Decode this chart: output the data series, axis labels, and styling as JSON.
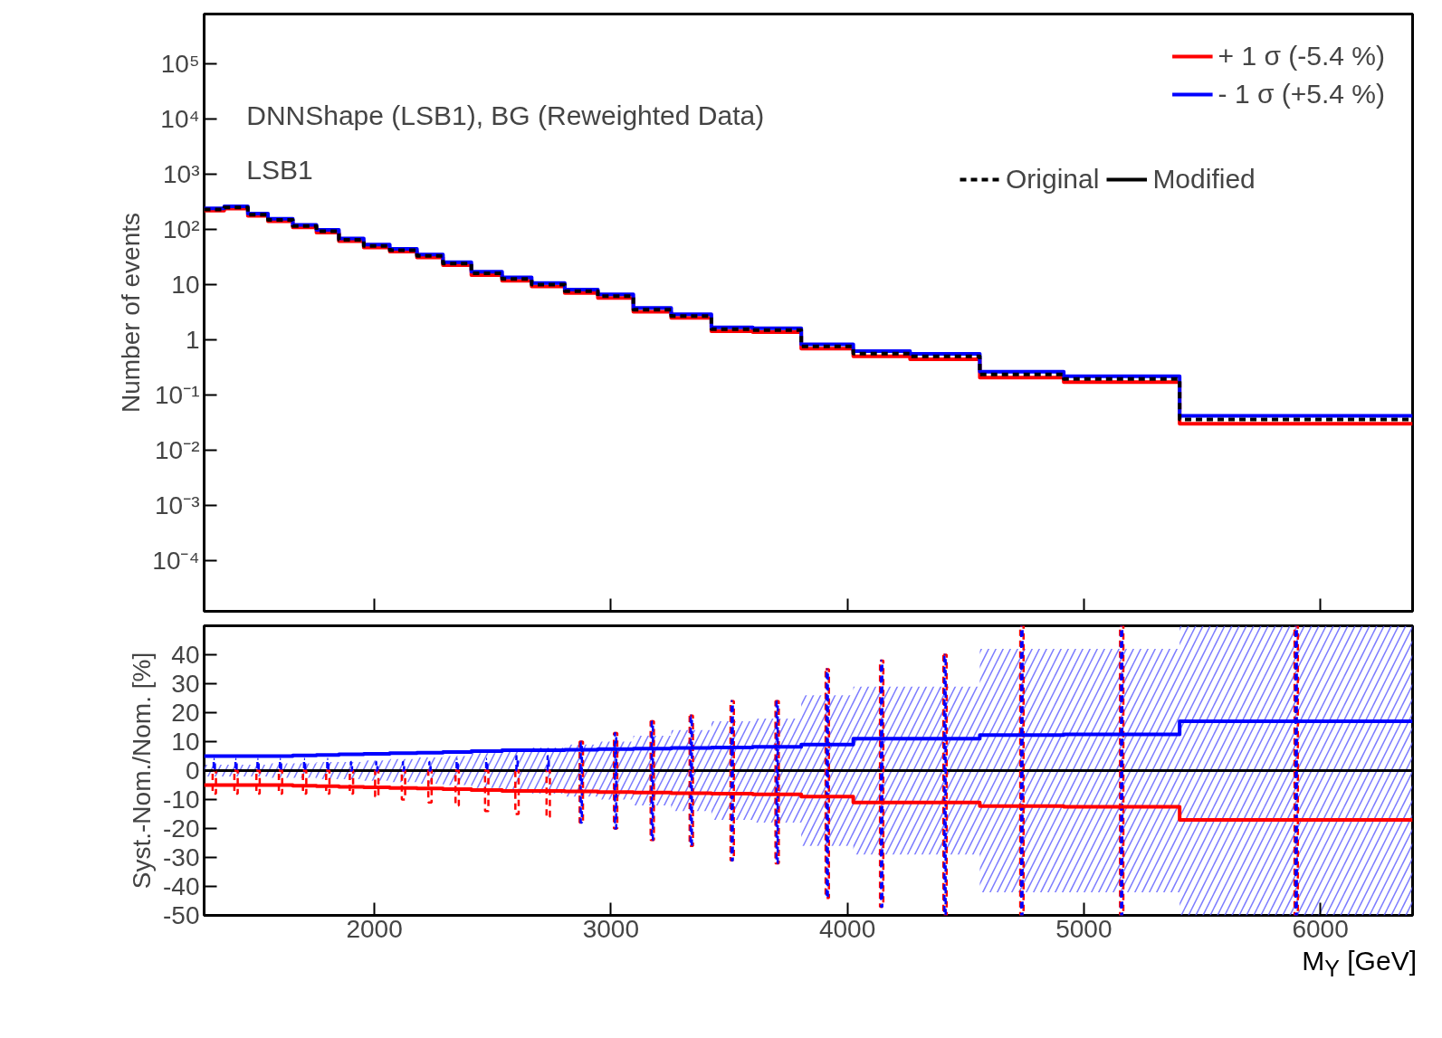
{
  "chart_data": [
    {
      "type": "histogram",
      "bins": [
        1280,
        1365,
        1465,
        1550,
        1655,
        1755,
        1850,
        1955,
        2065,
        2180,
        2290,
        2410,
        2540,
        2665,
        2805,
        2945,
        3095,
        3255,
        3425,
        3600,
        3805,
        4025,
        4265,
        4560,
        4915,
        5405,
        6390
      ],
      "xlim": [
        1280,
        6390
      ],
      "xticks": [
        2000,
        3000,
        4000,
        5000,
        6000
      ],
      "tick_labels": "y",
      "log": "y",
      "ylim": [
        1.2e-05,
        800000.0
      ],
      "yticks": [
        {
          "value": 0.0001,
          "label": "10⁻⁴"
        },
        {
          "value": 0.001,
          "label": "10⁻³"
        },
        {
          "value": 0.01,
          "label": "10⁻²"
        },
        {
          "value": 0.1,
          "label": "10⁻¹"
        },
        1,
        10,
        {
          "value": 100,
          "label": "10²"
        },
        {
          "value": 1000,
          "label": "10³"
        },
        {
          "value": 10000,
          "label": "10⁴"
        },
        {
          "value": 100000,
          "label": "10⁵"
        }
      ],
      "ylabel": "Number of events",
      "grid": false,
      "legend": "top right",
      "annotations": [
        "DNNShape (LSB1), BG (Reweighted Data)",
        "LSB1",
        "Modified"
      ],
      "series": [
        {
          "name": "+ 1 σ (-5.4 %)",
          "color": "#ff0000",
          "line_style": "solid",
          "values": [
            218.5,
            237.5,
            175.8,
            140.6,
            109.0,
            88.0,
            61.4,
            47.1,
            39.5,
            31.0,
            22.5,
            14.9,
            11.7,
            9.3,
            7.05,
            5.74,
            3.23,
            2.49,
            1.43,
            1.38,
            0.69,
            0.5,
            0.445,
            0.206,
            0.171,
            0.03
          ]
        },
        {
          "name": "- 1 σ (+5.4 %)",
          "color": "#0000ff",
          "line_style": "solid",
          "values": [
            241.5,
            262.5,
            194.3,
            155.4,
            121.0,
            98.0,
            68.6,
            52.9,
            44.5,
            35.0,
            25.5,
            17.1,
            13.5,
            10.7,
            8.15,
            6.66,
            3.77,
            2.91,
            1.67,
            1.62,
            0.83,
            0.62,
            0.555,
            0.264,
            0.219,
            0.042
          ]
        },
        {
          "name": "Original",
          "color": "#000000",
          "line_style": "dashed",
          "values": [
            230,
            250,
            185,
            148,
            115,
            93,
            65,
            50,
            42,
            33,
            24,
            16,
            12.6,
            10,
            7.6,
            6.2,
            3.5,
            2.7,
            1.55,
            1.5,
            0.76,
            0.56,
            0.5,
            0.235,
            0.195,
            0.036
          ]
        }
      ]
    },
    {
      "type": "histogram",
      "bins": [
        1280,
        1365,
        1465,
        1550,
        1655,
        1755,
        1850,
        1955,
        2065,
        2180,
        2290,
        2410,
        2540,
        2665,
        2805,
        2945,
        3095,
        3255,
        3425,
        3600,
        3805,
        4025,
        4265,
        4560,
        4915,
        5405,
        6390
      ],
      "xlim": [
        1280,
        6390
      ],
      "xticks": [
        2000,
        3000,
        4000,
        5000,
        6000
      ],
      "ylim": [
        -50,
        50
      ],
      "yticks": [
        -50,
        -40,
        -30,
        -20,
        -10,
        0,
        10,
        20,
        30,
        40
      ],
      "xlabel": "M$_{Y}$ [GeV]",
      "ylabel": "Syst.-Nom./Nom. [%]",
      "grid": false,
      "series": [
        {
          "type": "line",
          "color": "#000000",
          "line_style": "solid",
          "x": [
            1280,
            1365,
            1365,
            1465,
            1465,
            1550,
            1550,
            1655,
            1655,
            1755,
            1755,
            1850,
            1850,
            1955,
            1955,
            2065,
            2065,
            2180,
            2180,
            2290,
            2290,
            2410,
            2410,
            2540,
            2540,
            2665,
            2665,
            2805,
            2805,
            2945,
            2945,
            3095,
            3095,
            3255,
            3255,
            3425,
            3425,
            3600,
            3600,
            3805,
            3805,
            4025,
            4025,
            4265,
            4265,
            4560,
            4560,
            4915,
            4915,
            5405,
            5405,
            6390
          ],
          "values": [
            0,
            0,
            0,
            0,
            0,
            0,
            0,
            0,
            0,
            0,
            0,
            0,
            0,
            0,
            0,
            0,
            0,
            0,
            0,
            0,
            0,
            0,
            0,
            0,
            0,
            0,
            0,
            0,
            0,
            0,
            0,
            0,
            0,
            0,
            0,
            0,
            0,
            0,
            0,
            0,
            0,
            0,
            0,
            0,
            0,
            0,
            0,
            0,
            0,
            0,
            0,
            0
          ],
          "lower": [
            -2,
            -2,
            -2,
            -2,
            -2,
            -2,
            -2.5,
            -2.5,
            -2.5,
            -2.5,
            -3,
            -3,
            -3,
            -3,
            -3.5,
            -3.5,
            -4,
            -4,
            -4.5,
            -4.5,
            -5,
            -5,
            -6,
            -6,
            -7,
            -7,
            -8,
            -8,
            -9,
            -9,
            -10,
            -10,
            -12,
            -12,
            -14,
            -14,
            -17,
            -17,
            -18,
            -18,
            -26,
            -26,
            -29,
            -29,
            -29,
            -29,
            -42,
            -42,
            -42,
            -42,
            -50,
            -50
          ],
          "upper": [
            2,
            2,
            2,
            2,
            2,
            2,
            2.5,
            2.5,
            2.5,
            2.5,
            3,
            3,
            3,
            3,
            3.5,
            3.5,
            4,
            4,
            4.5,
            4.5,
            5,
            5,
            6,
            6,
            7,
            7,
            8,
            8,
            9,
            9,
            10,
            10,
            12,
            12,
            14,
            14,
            17,
            17,
            18,
            18,
            26,
            26,
            29,
            29,
            29,
            29,
            42,
            42,
            42,
            42,
            50,
            50
          ]
        },
        {
          "type": "bar",
          "line_style": "dashed",
          "color": "#ff0000",
          "x": [
            1323,
            1415,
            1508,
            1603,
            1705,
            1803,
            1903,
            2010,
            2123,
            2235,
            2350,
            2475,
            2603,
            2735,
            2875,
            3020,
            3175,
            3340,
            3513,
            3703,
            3915,
            4145,
            4413,
            4738,
            5160,
            5898
          ],
          "base": [
            -8,
            -8,
            -8,
            -8,
            -8,
            -8,
            -8,
            -9,
            -10,
            -11,
            -12,
            -14,
            -15,
            -16,
            -18,
            -20,
            -24,
            -26,
            -31,
            -32,
            -44,
            -47,
            -50,
            -50,
            -50,
            -50
          ],
          "values": [
            8,
            8,
            8,
            8,
            8,
            8,
            8,
            9,
            10,
            11,
            12,
            14,
            15,
            16,
            28,
            33,
            41,
            45,
            55,
            56,
            79,
            85,
            90,
            100,
            100,
            100
          ]
        },
        {
          "type": "bar",
          "line_style": "dashed",
          "color": "#0000ff",
          "x": [
            1323,
            1415,
            1508,
            1603,
            1705,
            1803,
            1903,
            2010,
            2123,
            2235,
            2350,
            2475,
            2603,
            2735,
            2875,
            3020,
            3175,
            3340,
            3513,
            3703,
            3915,
            4145,
            4413,
            4738,
            5160,
            5898
          ],
          "base": [
            0,
            0,
            0,
            0,
            0,
            0,
            0,
            0,
            0,
            0,
            0,
            0,
            0,
            0,
            -18,
            -20,
            -24,
            -26,
            -31,
            -32,
            -44,
            -47,
            -50,
            -50,
            -50,
            -50
          ],
          "values": [
            4,
            4,
            4,
            4,
            4,
            4,
            3,
            3,
            3,
            3,
            4,
            4,
            5,
            5,
            28,
            33,
            41,
            45,
            55,
            56,
            79,
            85,
            90,
            100,
            100,
            100
          ]
        },
        {
          "color": "#ff0000",
          "line_style": "solid",
          "values": [
            -5,
            -5,
            -5,
            -5,
            -5.2,
            -5.4,
            -5.6,
            -5.8,
            -6,
            -6.2,
            -6.4,
            -6.7,
            -7,
            -7,
            -7.2,
            -7.4,
            -7.6,
            -7.8,
            -8,
            -8.2,
            -9,
            -11,
            -11,
            -12.3,
            -12.5,
            -17
          ]
        },
        {
          "color": "#0000ff",
          "line_style": "solid",
          "values": [
            5,
            5,
            5,
            5,
            5.2,
            5.4,
            5.6,
            5.8,
            6,
            6.2,
            6.4,
            6.7,
            7,
            7,
            7.2,
            7.4,
            7.6,
            7.8,
            8,
            8.2,
            9,
            11,
            11,
            12.3,
            12.5,
            17
          ]
        }
      ]
    }
  ]
}
